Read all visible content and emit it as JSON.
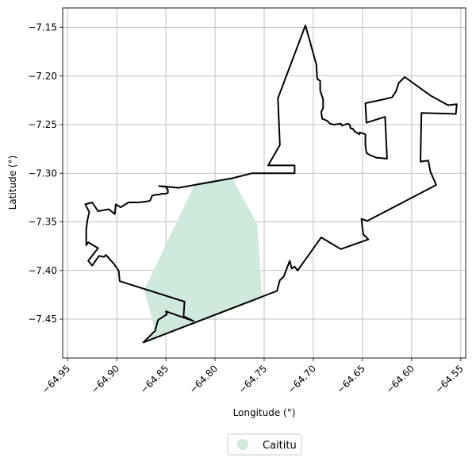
{
  "chart_data": {
    "type": "area",
    "xlabel": "Longitude (°)",
    "ylabel": "Latitude (°)",
    "xlim": [
      -64.955,
      -64.545
    ],
    "ylim": [
      -7.49,
      -7.13
    ],
    "grid": true,
    "x_ticks": [
      -64.95,
      -64.9,
      -64.85,
      -64.8,
      -64.75,
      -64.7,
      -64.65,
      -64.6,
      -64.55
    ],
    "x_tick_labels": [
      "−64.95",
      "−64.90",
      "−64.85",
      "−64.80",
      "−64.75",
      "−64.70",
      "−64.65",
      "−64.60",
      "−64.55"
    ],
    "y_ticks": [
      -7.15,
      -7.2,
      -7.25,
      -7.3,
      -7.35,
      -7.4,
      -7.45
    ],
    "y_tick_labels": [
      "−7.15",
      "−7.20",
      "−7.25",
      "−7.30",
      "−7.35",
      "−7.40",
      "−7.45"
    ],
    "legend_placement": "bottom-center",
    "series": [
      {
        "name": "Caititu",
        "color": "#cfeadd",
        "kind": "filled-area",
        "points": [
          [
            -64.82,
            -7.31
          ],
          [
            -64.782,
            -7.305
          ],
          [
            -64.779,
            -7.312
          ],
          [
            -64.757,
            -7.352
          ],
          [
            -64.752,
            -7.429
          ],
          [
            -64.869,
            -7.472
          ],
          [
            -64.873,
            -7.474
          ],
          [
            -64.861,
            -7.462
          ],
          [
            -64.872,
            -7.42
          ]
        ]
      },
      {
        "kind": "boundary-outline",
        "color": "#000000",
        "points": [
          [
            -64.708,
            -7.148
          ],
          [
            -64.697,
            -7.188
          ],
          [
            -64.696,
            -7.203
          ],
          [
            -64.693,
            -7.205
          ],
          [
            -64.693,
            -7.215
          ],
          [
            -64.69,
            -7.224
          ],
          [
            -64.69,
            -7.233
          ],
          [
            -64.692,
            -7.237
          ],
          [
            -64.691,
            -7.244
          ],
          [
            -64.686,
            -7.246
          ],
          [
            -64.683,
            -7.249
          ],
          [
            -64.679,
            -7.25
          ],
          [
            -64.672,
            -7.249
          ],
          [
            -64.671,
            -7.251
          ],
          [
            -64.665,
            -7.249
          ],
          [
            -64.663,
            -7.25
          ],
          [
            -64.662,
            -7.254
          ],
          [
            -64.66,
            -7.254
          ],
          [
            -64.658,
            -7.257
          ],
          [
            -64.653,
            -7.26
          ],
          [
            -64.653,
            -7.258
          ],
          [
            -64.647,
            -7.26
          ],
          [
            -64.647,
            -7.271
          ],
          [
            -64.646,
            -7.279
          ],
          [
            -64.643,
            -7.281
          ],
          [
            -64.636,
            -7.284
          ],
          [
            -64.625,
            -7.285
          ],
          [
            -64.627,
            -7.242
          ],
          [
            -64.646,
            -7.248
          ],
          [
            -64.647,
            -7.228
          ],
          [
            -64.633,
            -7.225
          ],
          [
            -64.62,
            -7.222
          ],
          [
            -64.616,
            -7.216
          ],
          [
            -64.613,
            -7.207
          ],
          [
            -64.607,
            -7.201
          ],
          [
            -64.581,
            -7.22
          ],
          [
            -64.563,
            -7.23
          ],
          [
            -64.554,
            -7.229
          ],
          [
            -64.555,
            -7.239
          ],
          [
            -64.59,
            -7.238
          ],
          [
            -64.591,
            -7.288
          ],
          [
            -64.583,
            -7.287
          ],
          [
            -64.581,
            -7.298
          ],
          [
            -64.575,
            -7.312
          ],
          [
            -64.645,
            -7.349
          ],
          [
            -64.651,
            -7.347
          ],
          [
            -64.65,
            -7.357
          ],
          [
            -64.649,
            -7.363
          ],
          [
            -64.646,
            -7.366
          ],
          [
            -64.644,
            -7.368
          ],
          [
            -64.672,
            -7.378
          ],
          [
            -64.692,
            -7.366
          ],
          [
            -64.716,
            -7.4
          ],
          [
            -64.719,
            -7.396
          ],
          [
            -64.722,
            -7.398
          ],
          [
            -64.724,
            -7.39
          ],
          [
            -64.73,
            -7.406
          ],
          [
            -64.734,
            -7.41
          ],
          [
            -64.737,
            -7.421
          ],
          [
            -64.873,
            -7.474
          ],
          [
            -64.861,
            -7.462
          ],
          [
            -64.858,
            -7.451
          ],
          [
            -64.849,
            -7.445
          ],
          [
            -64.85,
            -7.442
          ],
          [
            -64.822,
            -7.452
          ],
          [
            -64.832,
            -7.447
          ],
          [
            -64.831,
            -7.432
          ],
          [
            -64.897,
            -7.411
          ],
          [
            -64.898,
            -7.4
          ],
          [
            -64.903,
            -7.393
          ],
          [
            -64.911,
            -7.384
          ],
          [
            -64.913,
            -7.386
          ],
          [
            -64.918,
            -7.385
          ],
          [
            -64.925,
            -7.395
          ],
          [
            -64.929,
            -7.39
          ],
          [
            -64.919,
            -7.377
          ],
          [
            -64.929,
            -7.371
          ],
          [
            -64.931,
            -7.374
          ],
          [
            -64.931,
            -7.358
          ],
          [
            -64.93,
            -7.349
          ],
          [
            -64.928,
            -7.34
          ],
          [
            -64.932,
            -7.332
          ],
          [
            -64.925,
            -7.33
          ],
          [
            -64.919,
            -7.339
          ],
          [
            -64.908,
            -7.337
          ],
          [
            -64.902,
            -7.342
          ],
          [
            -64.901,
            -7.332
          ],
          [
            -64.896,
            -7.335
          ],
          [
            -64.888,
            -7.33
          ],
          [
            -64.878,
            -7.33
          ],
          [
            -64.869,
            -7.329
          ],
          [
            -64.866,
            -7.328
          ],
          [
            -64.864,
            -7.323
          ],
          [
            -64.859,
            -7.322
          ],
          [
            -64.857,
            -7.322
          ],
          [
            -64.854,
            -7.321
          ],
          [
            -64.85,
            -7.321
          ],
          [
            -64.848,
            -7.32
          ],
          [
            -64.848,
            -7.317
          ],
          [
            -64.85,
            -7.314
          ],
          [
            -64.857,
            -7.313
          ],
          [
            -64.837,
            -7.315
          ],
          [
            -64.782,
            -7.305
          ],
          [
            -64.762,
            -7.3
          ],
          [
            -64.741,
            -7.3
          ],
          [
            -64.719,
            -7.3
          ],
          [
            -64.719,
            -7.292
          ],
          [
            -64.746,
            -7.292
          ],
          [
            -64.734,
            -7.271
          ],
          [
            -64.736,
            -7.223
          ],
          [
            -64.708,
            -7.148
          ]
        ]
      }
    ]
  }
}
